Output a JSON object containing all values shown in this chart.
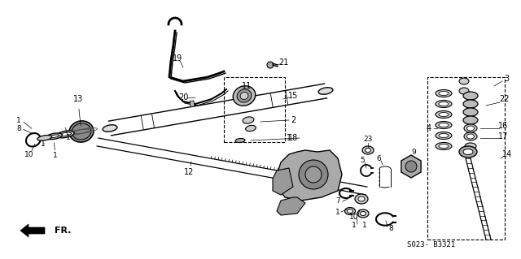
{
  "bg_color": "#ffffff",
  "part_code": "S023- B3321",
  "fr_label": "FR.",
  "gray": "#888888",
  "darkgray": "#555555",
  "lightgray": "#cccccc"
}
